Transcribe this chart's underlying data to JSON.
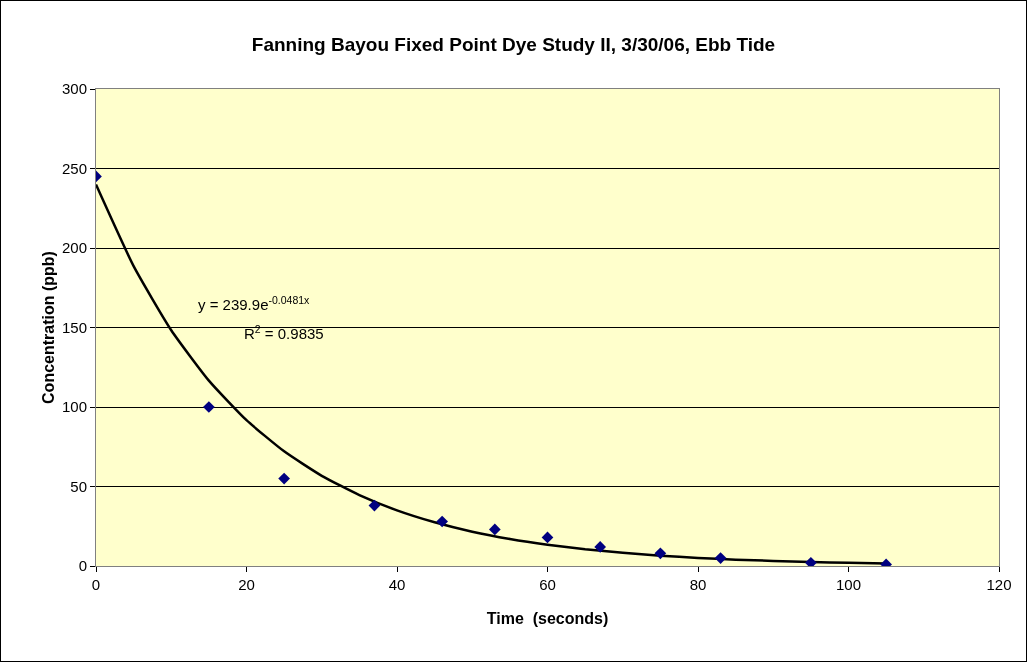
{
  "chart_data": {
    "type": "scatter",
    "title": "Fanning Bayou Fixed Point Dye Study II, 3/30/06, Ebb Tide",
    "xlabel": "Time  (seconds)",
    "ylabel": "Concentration (ppb)",
    "x": [
      0,
      15,
      25,
      37,
      46,
      53,
      60,
      67,
      75,
      83,
      95,
      105
    ],
    "series": [
      {
        "color": "#000080",
        "marker": "diamond",
        "values": [
          245,
          100,
          55,
          38,
          28,
          23,
          18,
          12,
          8,
          5,
          2,
          1
        ]
      },
      {
        "type": "line",
        "color": "#000000",
        "marker": "none",
        "line_style": "solid",
        "x": [
          0,
          5,
          10,
          15,
          20,
          25,
          30,
          35,
          40,
          45,
          50,
          55,
          60,
          65,
          70,
          75,
          80,
          85,
          90,
          95,
          100,
          105
        ],
        "values": [
          239.9,
          188.6,
          148.3,
          116.6,
          91.7,
          72.1,
          56.7,
          44.6,
          35,
          27.5,
          21.6,
          17,
          13.4,
          10.5,
          8.3,
          6.5,
          5.1,
          4,
          3.2,
          2.5,
          2,
          1.5
        ]
      }
    ],
    "annotations": [
      "y = 239.9e$^{-0.0481x}$",
      "R$^{2}$ = 0.9835"
    ],
    "xlim": [
      0,
      120
    ],
    "xticks": [
      0,
      20,
      40,
      60,
      80,
      100,
      120
    ],
    "ylim": [
      0,
      300
    ],
    "yticks": [
      0,
      50,
      100,
      150,
      200,
      250,
      300
    ],
    "grid": "y",
    "legend": false
  }
}
